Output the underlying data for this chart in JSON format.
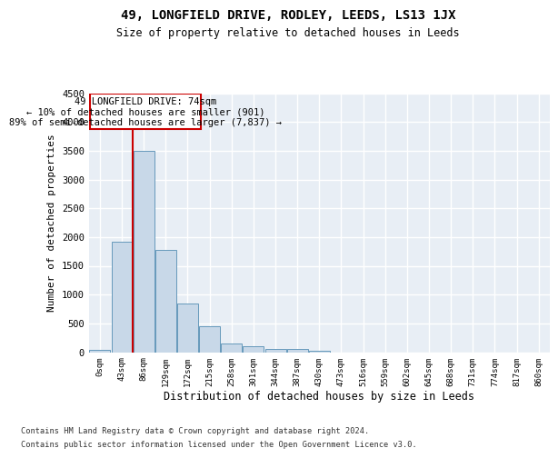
{
  "title": "49, LONGFIELD DRIVE, RODLEY, LEEDS, LS13 1JX",
  "subtitle": "Size of property relative to detached houses in Leeds",
  "xlabel": "Distribution of detached houses by size in Leeds",
  "ylabel": "Number of detached properties",
  "bar_color": "#c8d8e8",
  "bar_edge_color": "#6699bb",
  "background_color": "#e8eef5",
  "grid_color": "#ffffff",
  "categories": [
    "0sqm",
    "43sqm",
    "86sqm",
    "129sqm",
    "172sqm",
    "215sqm",
    "258sqm",
    "301sqm",
    "344sqm",
    "387sqm",
    "430sqm",
    "473sqm",
    "516sqm",
    "559sqm",
    "602sqm",
    "645sqm",
    "688sqm",
    "731sqm",
    "774sqm",
    "817sqm",
    "860sqm"
  ],
  "values": [
    40,
    1920,
    3490,
    1775,
    850,
    455,
    155,
    95,
    60,
    50,
    30,
    0,
    0,
    0,
    0,
    0,
    0,
    0,
    0,
    0,
    0
  ],
  "property_line_x": 1.5,
  "property_line_color": "#cc0000",
  "annotation_line1": "49 LONGFIELD DRIVE: 74sqm",
  "annotation_line2": "← 10% of detached houses are smaller (901)",
  "annotation_line3": "89% of semi-detached houses are larger (7,837) →",
  "annotation_box_color": "#cc0000",
  "annotation_box_facecolor": "#ffffff",
  "footer_line1": "Contains HM Land Registry data © Crown copyright and database right 2024.",
  "footer_line2": "Contains public sector information licensed under the Open Government Licence v3.0.",
  "ylim": [
    0,
    4500
  ],
  "yticks": [
    0,
    500,
    1000,
    1500,
    2000,
    2500,
    3000,
    3500,
    4000,
    4500
  ]
}
